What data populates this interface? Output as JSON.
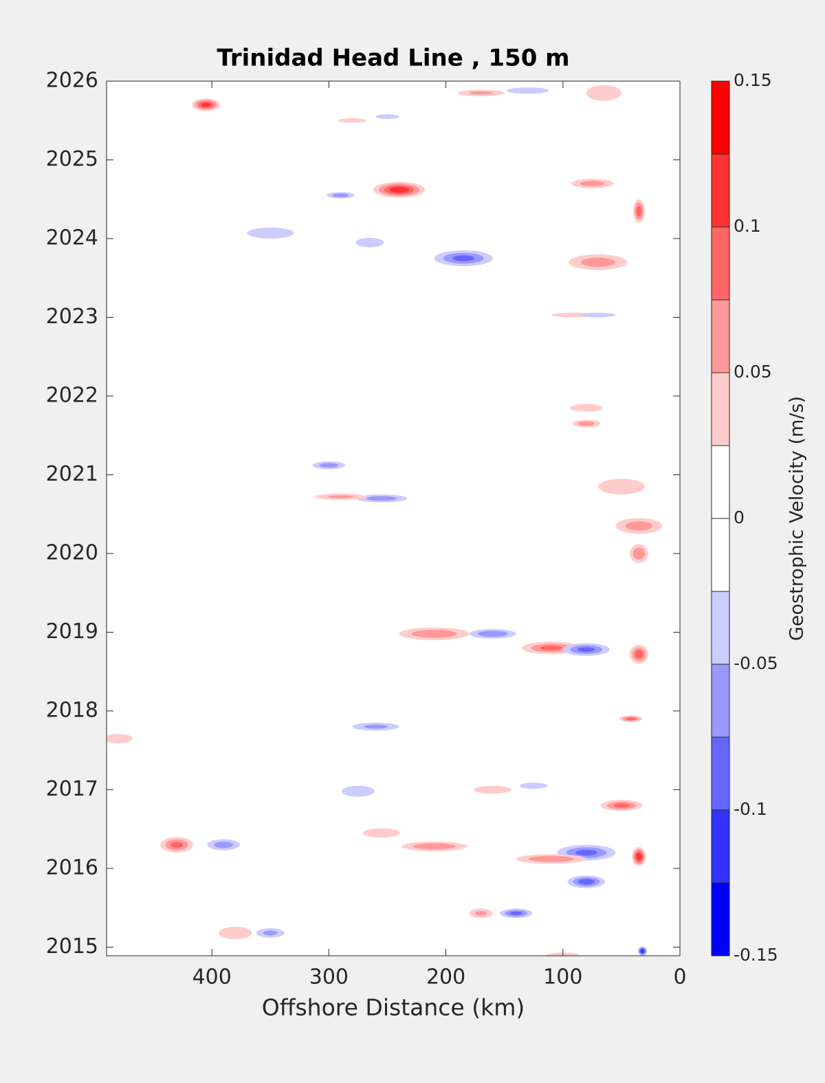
{
  "chart_data": {
    "type": "contour",
    "title": "Trinidad Head Line , 150 m",
    "xlabel": "Offshore Distance (km)",
    "colorbar_label": "Geostrophic Velocity (m/s)",
    "xlim": [
      490,
      0
    ],
    "xticks": [
      400,
      300,
      200,
      100,
      0
    ],
    "ylim": [
      2014.89,
      2026
    ],
    "yticks": [
      2015,
      2016,
      2017,
      2018,
      2019,
      2020,
      2021,
      2022,
      2023,
      2024,
      2025,
      2026
    ],
    "levels": [
      -0.15,
      -0.125,
      -0.1,
      -0.075,
      -0.05,
      -0.025,
      0,
      0.025,
      0.05,
      0.075,
      0.1,
      0.125,
      0.15
    ],
    "colors": [
      "#0000ff",
      "#3333ff",
      "#6666ff",
      "#9999ff",
      "#ccccff",
      "#ffffff",
      "#ffffff",
      "#ffcccc",
      "#ff9999",
      "#ff6666",
      "#ff3333",
      "#ff0000"
    ],
    "cticks": [
      -0.15,
      -0.1,
      -0.05,
      0,
      0.05,
      0.1,
      0.15
    ],
    "features": [
      {
        "x": 405,
        "y": 2025.7,
        "dx": 12,
        "dy": 0.08,
        "value": 0.11
      },
      {
        "x": 170,
        "y": 2025.85,
        "dx": 20,
        "dy": 0.04,
        "value": 0.05
      },
      {
        "x": 130,
        "y": 2025.88,
        "dx": 18,
        "dy": 0.04,
        "value": -0.04
      },
      {
        "x": 280,
        "y": 2025.5,
        "dx": 12,
        "dy": 0.03,
        "value": 0.04
      },
      {
        "x": 250,
        "y": 2025.55,
        "dx": 10,
        "dy": 0.03,
        "value": -0.04
      },
      {
        "x": 65,
        "y": 2025.85,
        "dx": 15,
        "dy": 0.1,
        "value": 0.04
      },
      {
        "x": 240,
        "y": 2024.62,
        "dx": 22,
        "dy": 0.1,
        "value": 0.12
      },
      {
        "x": 290,
        "y": 2024.55,
        "dx": 12,
        "dy": 0.04,
        "value": -0.06
      },
      {
        "x": 350,
        "y": 2024.07,
        "dx": 20,
        "dy": 0.07,
        "value": -0.04
      },
      {
        "x": 265,
        "y": 2023.95,
        "dx": 12,
        "dy": 0.06,
        "value": -0.04
      },
      {
        "x": 185,
        "y": 2023.75,
        "dx": 25,
        "dy": 0.1,
        "value": -0.08
      },
      {
        "x": 75,
        "y": 2024.7,
        "dx": 18,
        "dy": 0.06,
        "value": 0.06
      },
      {
        "x": 70,
        "y": 2023.7,
        "dx": 25,
        "dy": 0.1,
        "value": 0.06
      },
      {
        "x": 35,
        "y": 2024.35,
        "dx": 5,
        "dy": 0.15,
        "value": 0.09
      },
      {
        "x": 90,
        "y": 2023.03,
        "dx": 20,
        "dy": 0.03,
        "value": 0.04
      },
      {
        "x": 70,
        "y": 2023.03,
        "dx": 15,
        "dy": 0.03,
        "value": -0.04
      },
      {
        "x": 80,
        "y": 2021.65,
        "dx": 12,
        "dy": 0.05,
        "value": 0.06
      },
      {
        "x": 80,
        "y": 2021.85,
        "dx": 14,
        "dy": 0.05,
        "value": 0.04
      },
      {
        "x": 300,
        "y": 2021.12,
        "dx": 14,
        "dy": 0.05,
        "value": -0.06
      },
      {
        "x": 255,
        "y": 2020.7,
        "dx": 22,
        "dy": 0.05,
        "value": -0.06
      },
      {
        "x": 290,
        "y": 2020.72,
        "dx": 22,
        "dy": 0.04,
        "value": 0.05
      },
      {
        "x": 50,
        "y": 2020.85,
        "dx": 20,
        "dy": 0.1,
        "value": 0.04
      },
      {
        "x": 35,
        "y": 2020.35,
        "dx": 20,
        "dy": 0.1,
        "value": 0.06
      },
      {
        "x": 35,
        "y": 2020.0,
        "dx": 8,
        "dy": 0.12,
        "value": 0.07
      },
      {
        "x": 210,
        "y": 2018.98,
        "dx": 30,
        "dy": 0.08,
        "value": 0.07
      },
      {
        "x": 160,
        "y": 2018.98,
        "dx": 20,
        "dy": 0.06,
        "value": -0.07
      },
      {
        "x": 110,
        "y": 2018.8,
        "dx": 25,
        "dy": 0.08,
        "value": 0.08
      },
      {
        "x": 80,
        "y": 2018.78,
        "dx": 20,
        "dy": 0.08,
        "value": -0.08
      },
      {
        "x": 35,
        "y": 2018.72,
        "dx": 8,
        "dy": 0.12,
        "value": 0.09
      },
      {
        "x": 42,
        "y": 2017.9,
        "dx": 10,
        "dy": 0.04,
        "value": 0.09
      },
      {
        "x": 260,
        "y": 2017.8,
        "dx": 20,
        "dy": 0.05,
        "value": -0.05
      },
      {
        "x": 480,
        "y": 2017.65,
        "dx": 12,
        "dy": 0.06,
        "value": 0.04
      },
      {
        "x": 160,
        "y": 2017.0,
        "dx": 16,
        "dy": 0.05,
        "value": 0.04
      },
      {
        "x": 125,
        "y": 2017.05,
        "dx": 12,
        "dy": 0.04,
        "value": -0.04
      },
      {
        "x": 50,
        "y": 2016.8,
        "dx": 18,
        "dy": 0.07,
        "value": 0.08
      },
      {
        "x": 430,
        "y": 2016.3,
        "dx": 14,
        "dy": 0.1,
        "value": 0.08
      },
      {
        "x": 390,
        "y": 2016.3,
        "dx": 14,
        "dy": 0.07,
        "value": -0.06
      },
      {
        "x": 210,
        "y": 2016.28,
        "dx": 28,
        "dy": 0.06,
        "value": 0.07
      },
      {
        "x": 80,
        "y": 2016.2,
        "dx": 25,
        "dy": 0.1,
        "value": -0.08
      },
      {
        "x": 110,
        "y": 2016.12,
        "dx": 30,
        "dy": 0.06,
        "value": 0.07
      },
      {
        "x": 35,
        "y": 2016.15,
        "dx": 6,
        "dy": 0.12,
        "value": 0.12
      },
      {
        "x": 80,
        "y": 2015.83,
        "dx": 16,
        "dy": 0.08,
        "value": -0.09
      },
      {
        "x": 140,
        "y": 2015.43,
        "dx": 14,
        "dy": 0.06,
        "value": -0.08
      },
      {
        "x": 170,
        "y": 2015.43,
        "dx": 10,
        "dy": 0.06,
        "value": 0.05
      },
      {
        "x": 380,
        "y": 2015.18,
        "dx": 14,
        "dy": 0.08,
        "value": 0.04
      },
      {
        "x": 350,
        "y": 2015.18,
        "dx": 12,
        "dy": 0.06,
        "value": -0.05
      },
      {
        "x": 32,
        "y": 2014.95,
        "dx": 4,
        "dy": 0.06,
        "value": -0.12
      },
      {
        "x": 275,
        "y": 2016.98,
        "dx": 14,
        "dy": 0.07,
        "value": -0.04
      },
      {
        "x": 255,
        "y": 2016.45,
        "dx": 16,
        "dy": 0.06,
        "value": 0.04
      },
      {
        "x": 100,
        "y": 2014.9,
        "dx": 14,
        "dy": 0.03,
        "value": 0.04
      }
    ]
  }
}
